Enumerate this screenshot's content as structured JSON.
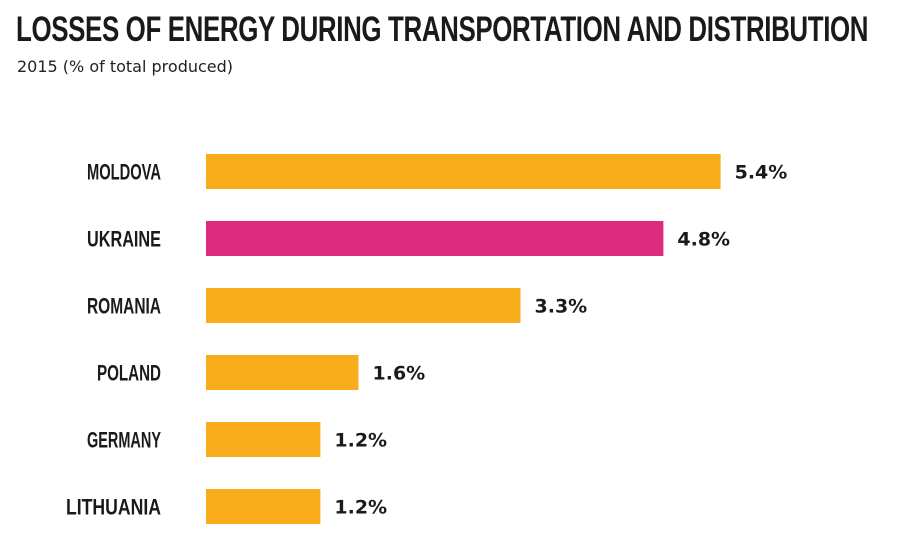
{
  "chart_data": {
    "type": "bar",
    "orientation": "horizontal",
    "title": "LOSSES OF ENERGY DURING TRANSPORTATION AND DISTRIBUTION",
    "subtitle": "2015 (% of total produced)",
    "categories": [
      "MOLDOVA",
      "UKRAINE",
      "ROMANIA",
      "POLAND",
      "GERMANY",
      "LITHUANIA"
    ],
    "values": [
      5.4,
      4.8,
      3.3,
      1.6,
      1.2,
      1.2
    ],
    "value_labels": [
      "5.4%",
      "4.8%",
      "3.3%",
      "1.6%",
      "1.2%",
      "1.2%"
    ],
    "colors": [
      "#f9ac1c",
      "#dc2a7d",
      "#f9ac1c",
      "#f9ac1c",
      "#f9ac1c",
      "#f9ac1c"
    ],
    "highlight_category": "UKRAINE",
    "xlim": [
      0,
      6
    ],
    "grid": false,
    "legend": "none"
  }
}
